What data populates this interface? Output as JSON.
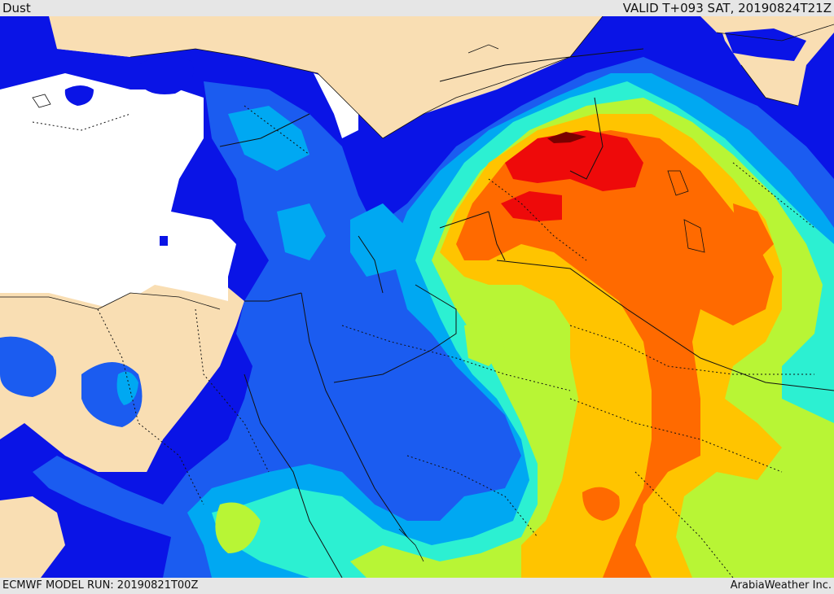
{
  "header": {
    "title": "Dust",
    "valid_time": "VALID T+093 SAT, 20190824T21Z"
  },
  "footer": {
    "model_run": "ECMWF MODEL RUN: 20190821T00Z",
    "credit": "ArabiaWeather Inc."
  },
  "colors": {
    "land": "#f9deb3",
    "sea_clear": "#ffffff",
    "level_1": "#0a14e6",
    "level_2": "#1b5cf0",
    "level_3": "#00a8f2",
    "level_4": "#2cf0d2",
    "level_5": "#b8f535",
    "level_6": "#ffc400",
    "level_7": "#ff6a00",
    "level_8": "#ee0a0a",
    "level_9": "#7a0000",
    "border": "#111111"
  }
}
